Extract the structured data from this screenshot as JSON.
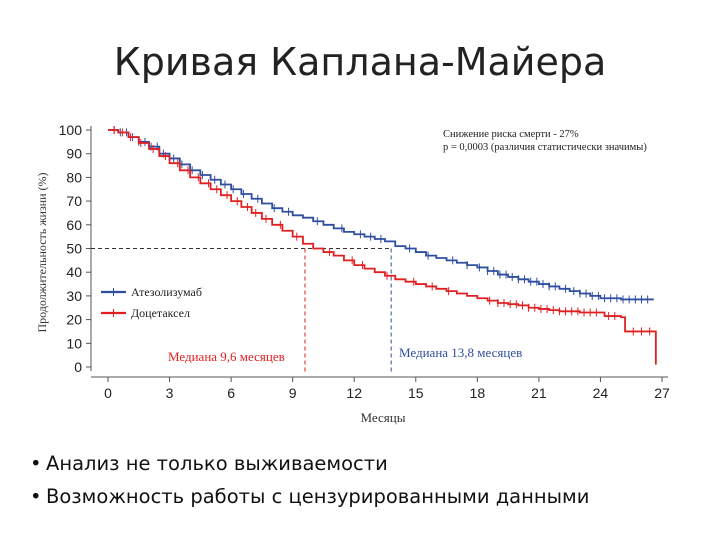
{
  "slide": {
    "title": "Кривая Каплана-Майера",
    "bullets": [
      "Анализ не только выживаемости",
      "Возможность работы с цензурированными данными"
    ]
  },
  "chart_data": {
    "type": "line",
    "step": true,
    "xlabel": "Месяцы",
    "ylabel": "Продолжительность жизни (%)",
    "xlim": [
      0,
      27
    ],
    "ylim": [
      0,
      100
    ],
    "xticks": [
      0,
      3,
      6,
      9,
      12,
      15,
      18,
      21,
      24,
      27
    ],
    "yticks": [
      0,
      10,
      20,
      30,
      40,
      50,
      60,
      70,
      80,
      90,
      100
    ],
    "legend_position": "bottom-left",
    "annotation": {
      "line1": "Снижение риска смерти - 27%",
      "line2": "p = 0,0003 (различия статистически значимы)"
    },
    "median_line": 50,
    "series": [
      {
        "name": "Атезолизумаб",
        "color": "#2f4ea0",
        "median_label": "Медиана 13,8 месяцев",
        "median_x": 13.8,
        "points": [
          [
            0,
            100
          ],
          [
            0.5,
            99
          ],
          [
            1,
            97
          ],
          [
            1.5,
            95
          ],
          [
            2,
            93
          ],
          [
            2.5,
            90
          ],
          [
            3,
            88
          ],
          [
            3.5,
            85.5
          ],
          [
            4,
            83
          ],
          [
            4.5,
            81
          ],
          [
            5,
            79
          ],
          [
            5.5,
            77
          ],
          [
            6,
            75
          ],
          [
            6.5,
            73
          ],
          [
            7,
            71
          ],
          [
            7.5,
            69
          ],
          [
            8,
            67
          ],
          [
            8.5,
            65.5
          ],
          [
            9,
            64
          ],
          [
            9.5,
            63
          ],
          [
            10,
            61.5
          ],
          [
            10.5,
            60
          ],
          [
            11,
            58.5
          ],
          [
            11.5,
            57
          ],
          [
            12,
            56
          ],
          [
            12.5,
            55
          ],
          [
            13,
            54
          ],
          [
            13.5,
            53
          ],
          [
            14,
            51
          ],
          [
            14.5,
            50
          ],
          [
            15,
            48.5
          ],
          [
            15.5,
            47
          ],
          [
            16,
            46
          ],
          [
            16.5,
            45
          ],
          [
            17,
            44
          ],
          [
            17.5,
            43
          ],
          [
            18,
            42
          ],
          [
            18.5,
            40.5
          ],
          [
            19,
            39
          ],
          [
            19.5,
            38
          ],
          [
            20,
            37
          ],
          [
            20.5,
            36
          ],
          [
            21,
            35
          ],
          [
            21.5,
            34
          ],
          [
            22,
            33
          ],
          [
            22.5,
            32
          ],
          [
            23,
            31
          ],
          [
            23.5,
            30
          ],
          [
            24,
            29
          ],
          [
            25,
            28.5
          ],
          [
            26,
            28.5
          ],
          [
            26.6,
            28.5
          ]
        ],
        "censored_x": [
          0.3,
          0.6,
          0.9,
          1.2,
          1.5,
          1.8,
          2.1,
          2.4,
          2.7,
          3.2,
          3.6,
          4.1,
          4.6,
          5.2,
          5.7,
          6.1,
          6.6,
          7.3,
          8.1,
          8.8,
          10.2,
          11.4,
          12.3,
          12.8,
          13.3,
          14.7,
          15.6,
          16.8,
          17.5,
          18.1,
          18.5,
          18.8,
          19.1,
          19.4,
          19.7,
          20.0,
          20.3,
          20.6,
          20.9,
          21.2,
          21.5,
          21.8,
          22.3,
          22.7,
          23.0,
          23.3,
          23.6,
          23.9,
          24.2,
          24.5,
          24.8,
          25.1,
          25.4,
          25.7,
          26.0,
          26.3
        ]
      },
      {
        "name": "Доцетаксел",
        "color": "#e02020",
        "median_label": "Медиана 9,6 месяцев",
        "median_x": 9.6,
        "points": [
          [
            0,
            100
          ],
          [
            0.5,
            99
          ],
          [
            1,
            97
          ],
          [
            1.5,
            94.5
          ],
          [
            2,
            92
          ],
          [
            2.5,
            89
          ],
          [
            3,
            86
          ],
          [
            3.5,
            83
          ],
          [
            4,
            80
          ],
          [
            4.5,
            77.5
          ],
          [
            5,
            75
          ],
          [
            5.5,
            72.5
          ],
          [
            6,
            70
          ],
          [
            6.5,
            67.5
          ],
          [
            7,
            65
          ],
          [
            7.5,
            62.5
          ],
          [
            8,
            60
          ],
          [
            8.5,
            57.5
          ],
          [
            9,
            55
          ],
          [
            9.5,
            52
          ],
          [
            10,
            50
          ],
          [
            10.5,
            48.5
          ],
          [
            11,
            47
          ],
          [
            11.5,
            45
          ],
          [
            12,
            43
          ],
          [
            12.5,
            41.5
          ],
          [
            13,
            40
          ],
          [
            13.5,
            38.5
          ],
          [
            14,
            37
          ],
          [
            14.5,
            36
          ],
          [
            15,
            35
          ],
          [
            15.5,
            34
          ],
          [
            16,
            33
          ],
          [
            16.5,
            32
          ],
          [
            17,
            31
          ],
          [
            17.5,
            30
          ],
          [
            18,
            29
          ],
          [
            18.5,
            28
          ],
          [
            19,
            27
          ],
          [
            19.5,
            26.5
          ],
          [
            20,
            26
          ],
          [
            20.5,
            25
          ],
          [
            21,
            24.5
          ],
          [
            21.5,
            24
          ],
          [
            22,
            23.5
          ],
          [
            23,
            23
          ],
          [
            24,
            23
          ],
          [
            24.2,
            21.5
          ],
          [
            25,
            21
          ],
          [
            25.2,
            15
          ],
          [
            26,
            15
          ],
          [
            26.7,
            15
          ],
          [
            26.7,
            1
          ]
        ],
        "censored_x": [
          0.3,
          0.7,
          1.1,
          1.6,
          2.2,
          2.8,
          3.4,
          3.9,
          4.4,
          4.9,
          5.3,
          5.8,
          6.3,
          6.8,
          7.2,
          7.7,
          8.4,
          9.2,
          10.8,
          11.9,
          12.4,
          13.6,
          14.9,
          15.8,
          16.6,
          18.6,
          19.0,
          19.3,
          19.6,
          19.9,
          20.2,
          20.5,
          20.8,
          21.1,
          21.4,
          21.7,
          22.0,
          22.3,
          22.6,
          22.9,
          23.2,
          23.5,
          23.8,
          24.4,
          24.7,
          25.6,
          26.0,
          26.4
        ]
      }
    ]
  }
}
